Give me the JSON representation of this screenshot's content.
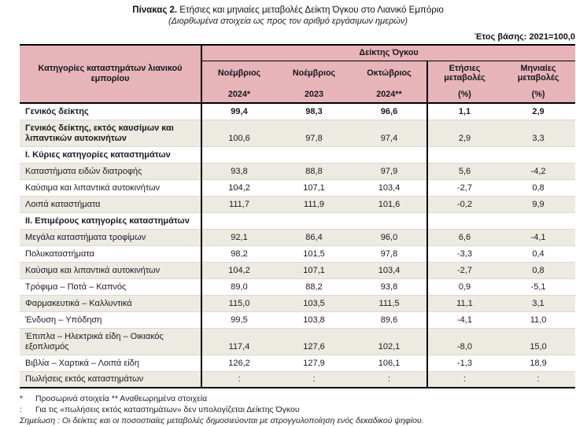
{
  "title": {
    "prefix": "Πίνακας 2.",
    "text": " Ετήσιες και μηνιαίες μεταβολές Δείκτη Όγκου στο Λιανικό Εμπόριο"
  },
  "subtitle": "(Διορθωμένα στοιχεία ως προς τον αριθμό εργάσιμων ημερών)",
  "base_year_label": "Έτος βάσης: 2021=100,0",
  "colors": {
    "header_pink": "#E7B5B9",
    "stripe_beige": "#ECEAE1",
    "rule_black": "#000000",
    "text": "#1A1A22"
  },
  "table": {
    "col1_header": "Κατηγορίες καταστημάτων λιανικού εμπορίου",
    "group_header": "Δείκτης Όγκου",
    "columns": [
      {
        "line1": "Νοέμβριος",
        "line2": "2024*"
      },
      {
        "line1": "Νοέμβριος",
        "line2": "2023"
      },
      {
        "line1": "Οκτώβριος",
        "line2": "2024**"
      },
      {
        "line1": "Ετήσιες μεταβολές",
        "line2": "(%)"
      },
      {
        "line1": "Μηνιαίες μεταβολές",
        "line2": "(%)"
      }
    ],
    "rows": [
      {
        "label": "Γενικός δείκτης",
        "values": [
          "99,4",
          "98,3",
          "96,6",
          "1,1",
          "2,9"
        ],
        "bold": true,
        "bold_values": true,
        "stripe": false,
        "tall": false
      },
      {
        "label": "Γενικός δείκτης, εκτός καυσίμων και λιπαντικών αυτοκινήτων",
        "values": [
          "100,6",
          "97,8",
          "97,4",
          "2,9",
          "3,3"
        ],
        "bold": true,
        "bold_values": false,
        "stripe": true,
        "tall": true
      },
      {
        "label": "Ι. Κύριες κατηγορίες καταστημάτων",
        "values": [
          "",
          "",
          "",
          "",
          ""
        ],
        "bold": true,
        "bold_values": false,
        "stripe": false,
        "tall": false
      },
      {
        "label": "Καταστήματα ειδών διατροφής",
        "values": [
          "93,8",
          "88,8",
          "97,9",
          "5,6",
          "-4,2"
        ],
        "bold": false,
        "bold_values": false,
        "stripe": true,
        "tall": false
      },
      {
        "label": "Καύσιμα και λιπαντικά αυτοκινήτων",
        "values": [
          "104,2",
          "107,1",
          "103,4",
          "-2,7",
          "0,8"
        ],
        "bold": false,
        "bold_values": false,
        "stripe": false,
        "tall": false
      },
      {
        "label": "Λοιπά καταστήματα",
        "values": [
          "111,7",
          "111,9",
          "101,6",
          "-0,2",
          "9,9"
        ],
        "bold": false,
        "bold_values": false,
        "stripe": true,
        "tall": false
      },
      {
        "label": "ΙΙ. Επιμέρους κατηγορίες καταστημάτων",
        "values": [
          "",
          "",
          "",
          "",
          ""
        ],
        "bold": true,
        "bold_values": false,
        "stripe": false,
        "tall": false
      },
      {
        "label": "Μεγάλα καταστήματα τροφίμων",
        "values": [
          "92,1",
          "86,4",
          "96,0",
          "6,6",
          "-4,1"
        ],
        "bold": false,
        "bold_values": false,
        "stripe": true,
        "tall": false
      },
      {
        "label": "Πολυκαταστήματα",
        "values": [
          "98,2",
          "101,5",
          "97,8",
          "-3,3",
          "0,4"
        ],
        "bold": false,
        "bold_values": false,
        "stripe": false,
        "tall": false
      },
      {
        "label": "Καύσιμα και λιπαντικά αυτοκινήτων",
        "values": [
          "104,2",
          "107,1",
          "103,4",
          "-2,7",
          "0,8"
        ],
        "bold": false,
        "bold_values": false,
        "stripe": true,
        "tall": false
      },
      {
        "label": "Τρόφιμα – Ποτά – Καπνός",
        "values": [
          "89,0",
          "88,2",
          "93,8",
          "0,9",
          "-5,1"
        ],
        "bold": false,
        "bold_values": false,
        "stripe": false,
        "tall": false
      },
      {
        "label": "Φαρμακευτικά – Καλλυντικά",
        "values": [
          "115,0",
          "103,5",
          "111,5",
          "11,1",
          "3,1"
        ],
        "bold": false,
        "bold_values": false,
        "stripe": true,
        "tall": false
      },
      {
        "label": "Ένδυση – Υπόδηση",
        "values": [
          "99,5",
          "103,8",
          "89,6",
          "-4,1",
          "11,0"
        ],
        "bold": false,
        "bold_values": false,
        "stripe": false,
        "tall": false
      },
      {
        "label": "Έπιπλα – Ηλεκτρικά είδη – Οικιακός εξοπλισμός",
        "values": [
          "117,4",
          "127,6",
          "102,1",
          "-8,0",
          "15,0"
        ],
        "bold": false,
        "bold_values": false,
        "stripe": true,
        "tall": true
      },
      {
        "label": "Βιβλία – Χαρτικά – Λοιπά είδη",
        "values": [
          "126,2",
          "127,9",
          "106,1",
          "-1,3",
          "18,9"
        ],
        "bold": false,
        "bold_values": false,
        "stripe": false,
        "tall": false
      },
      {
        "label": "Πωλήσεις εκτός καταστημάτων",
        "values": [
          ":",
          ":",
          ":",
          ":",
          ":"
        ],
        "bold": false,
        "bold_values": false,
        "stripe": true,
        "tall": false
      }
    ]
  },
  "footnotes": [
    {
      "marker": "*",
      "text": "Προσωρινά στοιχεία  **  Αναθεωρημένα στοιχεία"
    },
    {
      "marker": ":",
      "text": "Για τις «πωλήσεις εκτός καταστημάτων» δεν υπολογίζεται Δείκτης Όγκου"
    }
  ],
  "note": "Σημείωση : Οι δείκτες και οι ποσοστιαίες μεταβολές δημοσιεύονται με στρογγυλοποίηση ενός δεκαδικού ψηφίου."
}
